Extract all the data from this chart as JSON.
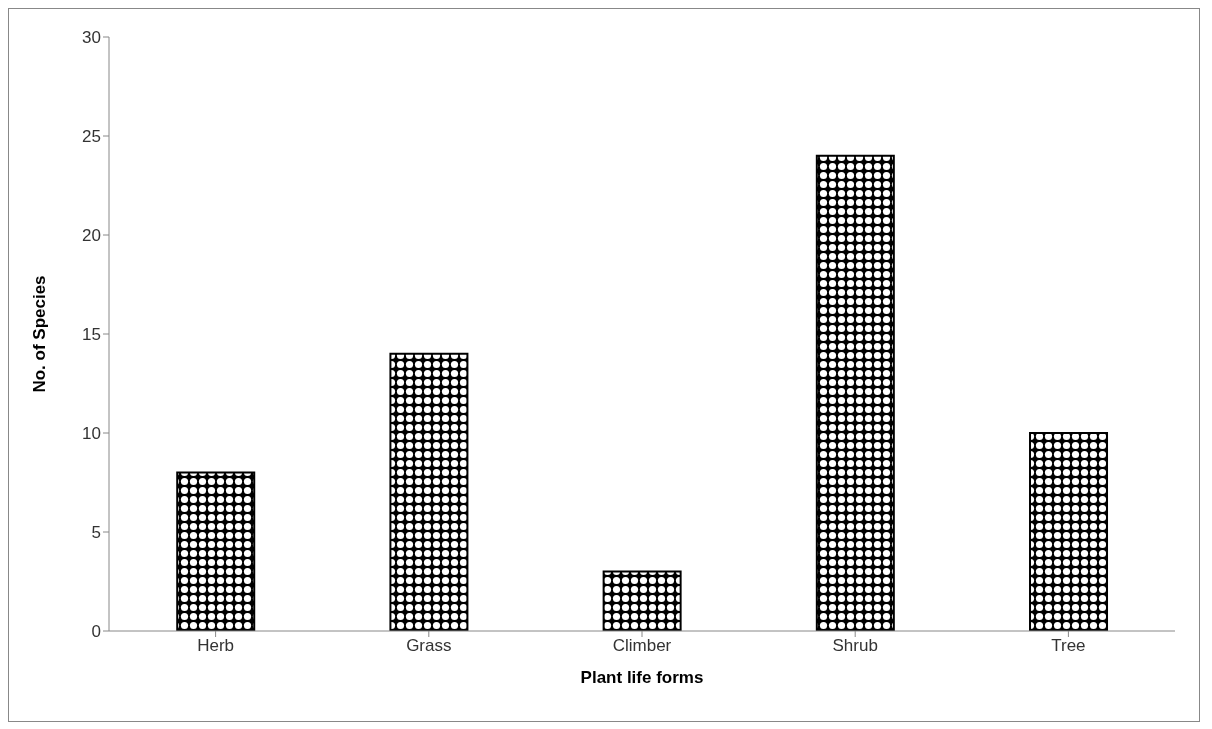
{
  "chart_data": {
    "type": "bar",
    "xlabel": "Plant life forms",
    "ylabel": "No. of Species",
    "categories": [
      "Herb",
      "Grass",
      "Climber",
      "Shrub",
      "Tree"
    ],
    "values": [
      8,
      14,
      3,
      24,
      10
    ],
    "color": "#000000",
    "ylim": [
      0,
      30
    ],
    "yticks": [
      0,
      5,
      10,
      15,
      20,
      25,
      30
    ],
    "grid": false
  }
}
